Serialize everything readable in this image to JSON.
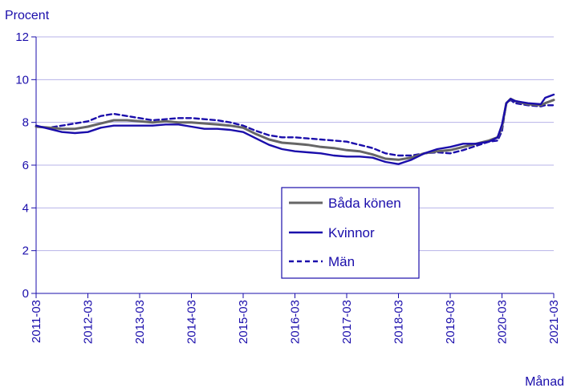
{
  "chart_data": {
    "type": "line",
    "ylabel": "Procent",
    "xlabel": "Månad",
    "ylim": [
      0,
      12
    ],
    "yticks": [
      0,
      2,
      4,
      6,
      8,
      10,
      12
    ],
    "grid": "horizontal",
    "legend_position": "center-right",
    "xticklabels": [
      "2011-03",
      "2012-03",
      "2013-03",
      "2014-03",
      "2015-03",
      "2016-03",
      "2017-03",
      "2018-03",
      "2019-03",
      "2020-03",
      "2021-03"
    ],
    "x_months": [
      "2011-03",
      "2011-06",
      "2011-09",
      "2011-12",
      "2012-03",
      "2012-06",
      "2012-09",
      "2012-12",
      "2013-03",
      "2013-06",
      "2013-09",
      "2013-12",
      "2014-03",
      "2014-06",
      "2014-09",
      "2014-12",
      "2015-03",
      "2015-06",
      "2015-09",
      "2015-12",
      "2016-03",
      "2016-06",
      "2016-09",
      "2016-12",
      "2017-03",
      "2017-06",
      "2017-09",
      "2017-12",
      "2018-03",
      "2018-06",
      "2018-09",
      "2018-12",
      "2019-03",
      "2019-06",
      "2019-09",
      "2019-12",
      "2020-02",
      "2020-03",
      "2020-04",
      "2020-05",
      "2020-06",
      "2020-09",
      "2020-12",
      "2021-01",
      "2021-03"
    ],
    "series": [
      {
        "name": "Båda könen",
        "color": "#666666",
        "style": "solid",
        "values": [
          7.8,
          7.75,
          7.7,
          7.7,
          7.8,
          7.95,
          8.1,
          8.1,
          8.05,
          8.0,
          8.05,
          8.0,
          8.0,
          7.95,
          7.9,
          7.85,
          7.75,
          7.45,
          7.2,
          7.05,
          7.0,
          6.95,
          6.85,
          6.8,
          6.7,
          6.65,
          6.5,
          6.3,
          6.25,
          6.35,
          6.55,
          6.65,
          6.7,
          6.85,
          7.0,
          7.15,
          7.3,
          7.8,
          8.9,
          9.1,
          9.0,
          8.85,
          8.8,
          8.9,
          9.05
        ]
      },
      {
        "name": "Kvinnor",
        "color": "#1a0dab",
        "style": "solid",
        "values": [
          7.85,
          7.7,
          7.55,
          7.5,
          7.55,
          7.75,
          7.85,
          7.85,
          7.85,
          7.85,
          7.9,
          7.9,
          7.8,
          7.7,
          7.7,
          7.65,
          7.55,
          7.25,
          6.95,
          6.75,
          6.65,
          6.6,
          6.55,
          6.45,
          6.4,
          6.4,
          6.35,
          6.15,
          6.05,
          6.25,
          6.55,
          6.75,
          6.85,
          7.0,
          7.0,
          7.1,
          7.3,
          7.9,
          8.9,
          9.1,
          9.0,
          8.9,
          8.85,
          9.15,
          9.3
        ]
      },
      {
        "name": "Män",
        "color": "#1a0dab",
        "style": "dashed",
        "values": [
          7.8,
          7.75,
          7.85,
          7.95,
          8.05,
          8.3,
          8.4,
          8.3,
          8.2,
          8.1,
          8.15,
          8.2,
          8.2,
          8.15,
          8.1,
          8.0,
          7.85,
          7.6,
          7.4,
          7.3,
          7.3,
          7.25,
          7.2,
          7.15,
          7.1,
          6.95,
          6.8,
          6.55,
          6.45,
          6.45,
          6.55,
          6.6,
          6.55,
          6.7,
          6.9,
          7.1,
          7.15,
          7.6,
          8.9,
          9.05,
          8.9,
          8.8,
          8.75,
          8.8,
          8.8
        ]
      }
    ]
  }
}
